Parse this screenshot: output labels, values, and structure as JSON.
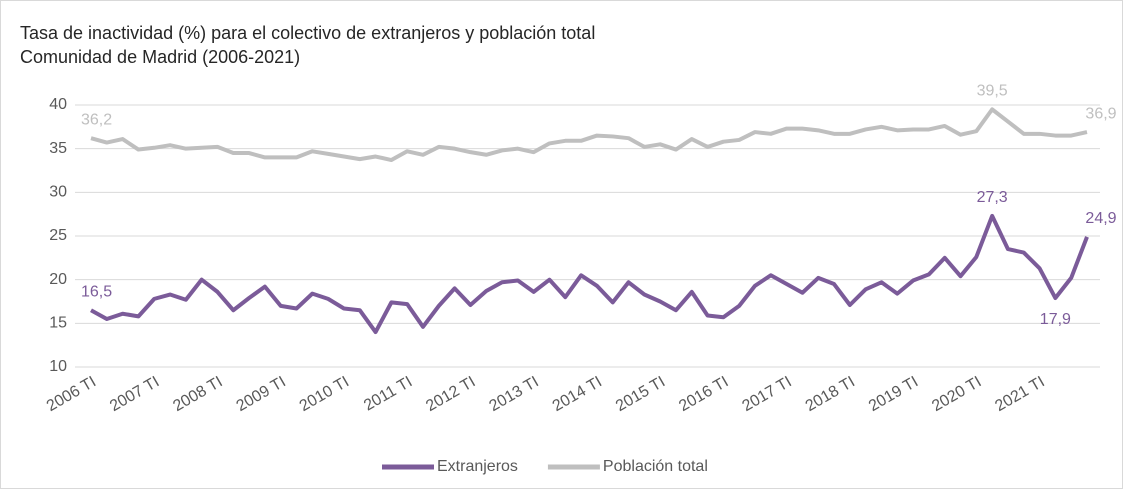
{
  "chart_data": {
    "type": "line",
    "title": "Tasa de inactividad (%) para el colectivo de extranjeros  y población total",
    "subtitle": "Comunidad de Madrid (2006-2021)",
    "categories": [
      "2006 TI",
      null,
      null,
      null,
      "2007 TI",
      null,
      null,
      null,
      "2008 TI",
      null,
      null,
      null,
      "2009 TI",
      null,
      null,
      null,
      "2010 TI",
      null,
      null,
      null,
      "2011 TI",
      null,
      null,
      null,
      "2012 TI",
      null,
      null,
      null,
      "2013 TI",
      null,
      null,
      null,
      "2014 TI",
      null,
      null,
      null,
      "2015 TI",
      null,
      null,
      null,
      "2016 TI",
      null,
      null,
      null,
      "2017 TI",
      null,
      null,
      null,
      "2018 TI",
      null,
      null,
      null,
      "2019 TI",
      null,
      null,
      null,
      "2020 TI",
      null,
      null,
      null,
      "2021 TI",
      null,
      null,
      null
    ],
    "series": [
      {
        "name": "Extranjeros",
        "color": "#7b5b99",
        "values": [
          16.5,
          15.5,
          16.1,
          15.8,
          17.8,
          18.3,
          17.7,
          20.0,
          18.6,
          16.5,
          17.9,
          19.2,
          17.0,
          16.7,
          18.4,
          17.8,
          16.7,
          16.5,
          14.0,
          17.4,
          17.2,
          14.6,
          17.0,
          19.0,
          17.1,
          18.7,
          19.7,
          19.9,
          18.6,
          20.0,
          18.0,
          20.5,
          19.3,
          17.4,
          19.7,
          18.3,
          17.5,
          16.5,
          18.6,
          15.9,
          15.7,
          17.0,
          19.3,
          20.5,
          19.5,
          18.5,
          20.2,
          19.5,
          17.1,
          18.9,
          19.7,
          18.4,
          19.9,
          20.6,
          22.5,
          20.4,
          22.6,
          27.3,
          23.5,
          23.1,
          21.3,
          17.9,
          20.2,
          24.9
        ],
        "value_labels": [
          "16,5",
          null,
          null,
          null,
          null,
          null,
          null,
          null,
          null,
          null,
          null,
          null,
          null,
          null,
          null,
          null,
          null,
          null,
          null,
          null,
          null,
          null,
          null,
          null,
          null,
          null,
          null,
          null,
          null,
          null,
          null,
          null,
          null,
          null,
          null,
          null,
          null,
          null,
          null,
          null,
          null,
          null,
          null,
          null,
          null,
          null,
          null,
          null,
          null,
          null,
          null,
          null,
          null,
          null,
          null,
          null,
          null,
          "27,3",
          null,
          null,
          null,
          "17,9",
          null,
          "24,9"
        ]
      },
      {
        "name": "Población total",
        "color": "#bfbfbf",
        "values": [
          36.2,
          35.7,
          36.1,
          34.9,
          35.1,
          35.4,
          35.0,
          35.1,
          35.2,
          34.5,
          34.5,
          34.0,
          34.0,
          34.0,
          34.7,
          34.4,
          34.1,
          33.8,
          34.1,
          33.7,
          34.7,
          34.3,
          35.2,
          35.0,
          34.6,
          34.3,
          34.8,
          35.0,
          34.6,
          35.6,
          35.9,
          35.9,
          36.5,
          36.4,
          36.2,
          35.2,
          35.5,
          34.9,
          36.1,
          35.2,
          35.8,
          36.0,
          36.9,
          36.7,
          37.3,
          37.3,
          37.1,
          36.7,
          36.7,
          37.2,
          37.5,
          37.1,
          37.2,
          37.2,
          37.6,
          36.6,
          37.0,
          39.5,
          38.1,
          36.7,
          36.7,
          36.5,
          36.5,
          36.9
        ],
        "value_labels": [
          "36,2",
          null,
          null,
          null,
          null,
          null,
          null,
          null,
          null,
          null,
          null,
          null,
          null,
          null,
          null,
          null,
          null,
          null,
          null,
          null,
          null,
          null,
          null,
          null,
          null,
          null,
          null,
          null,
          null,
          null,
          null,
          null,
          null,
          null,
          null,
          null,
          null,
          null,
          null,
          null,
          null,
          null,
          null,
          null,
          null,
          null,
          null,
          null,
          null,
          null,
          null,
          null,
          null,
          null,
          null,
          null,
          null,
          "39,5",
          null,
          null,
          null,
          null,
          null,
          "36,9"
        ]
      }
    ],
    "ylim": [
      10,
      40
    ],
    "yticks": [
      10,
      15,
      20,
      25,
      30,
      35,
      40
    ],
    "grid": true,
    "legend": "bottom"
  }
}
